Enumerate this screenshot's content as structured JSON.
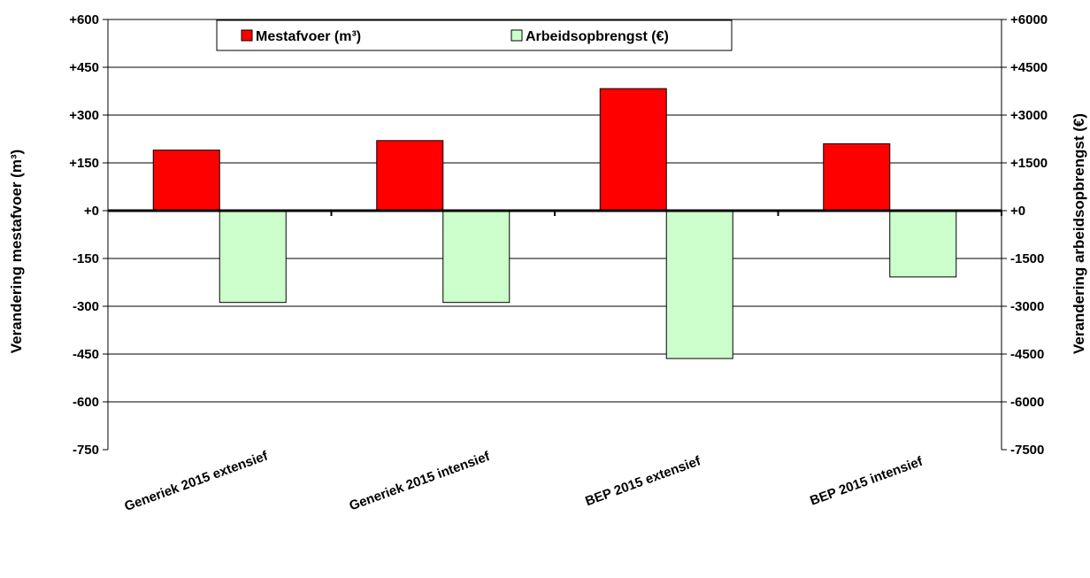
{
  "chart_data": {
    "type": "bar",
    "categories": [
      "Generiek 2015 extensief",
      "Generiek 2015 intensief",
      "BEP 2015 extensief",
      "BEP 2015 intensief"
    ],
    "series": [
      {
        "name": "Mestafvoer (m³)",
        "axis": "left",
        "color": "#ff0000",
        "values": [
          190,
          220,
          383,
          210
        ]
      },
      {
        "name": "Arbeidsopbrengst (€)",
        "axis": "right",
        "color": "#ccffcc",
        "values": [
          -2880,
          -2880,
          -4640,
          -2080
        ]
      }
    ],
    "ylabel": "Verandering mestafvoer (m³)",
    "y2label": "Verandering arbeidsopbrengst (€)",
    "ylim": [
      -750,
      600
    ],
    "y2lim": [
      -7500,
      6000
    ],
    "yticks": [
      "+600",
      "+450",
      "+300",
      "+150",
      "+0",
      "-150",
      "-300",
      "-450",
      "-600",
      "-750"
    ],
    "y2ticks": [
      "+6000",
      "+4500",
      "+3000",
      "+1500",
      "+0",
      "-1500",
      "-3000",
      "-4500",
      "-6000",
      "-7500"
    ],
    "grid": true,
    "legend_position": "top"
  }
}
